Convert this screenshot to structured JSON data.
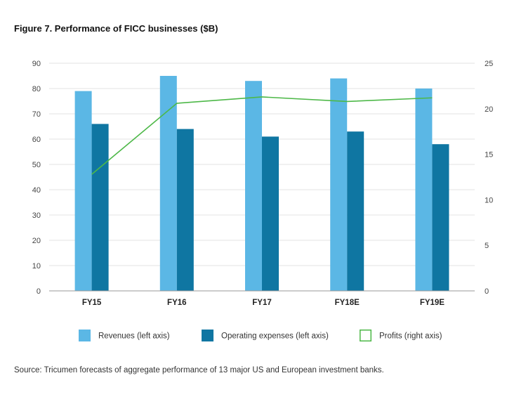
{
  "title": "Figure 7. Performance of FICC businesses ($B)",
  "source": "Source: Tricumen forecasts of aggregate performance of 13 major US and European investment banks.",
  "chart_data": {
    "type": "bar",
    "title": "Figure 7. Performance of FICC businesses ($B)",
    "categories": [
      "FY15",
      "FY16",
      "FY17",
      "FY18E",
      "FY19E"
    ],
    "y_left": {
      "ylim": [
        0,
        90
      ],
      "ticks": [
        0,
        10,
        20,
        30,
        40,
        50,
        60,
        70,
        80,
        90
      ]
    },
    "y_right": {
      "ylim": [
        0,
        25
      ],
      "ticks": [
        0,
        5,
        10,
        15,
        20,
        25
      ]
    },
    "series": [
      {
        "name": "Revenues (left axis)",
        "type": "bar",
        "axis": "left",
        "color": "#5bb7e5",
        "values": [
          79,
          85,
          83,
          84,
          80
        ]
      },
      {
        "name": "Operating expenses (left axis)",
        "type": "bar",
        "axis": "left",
        "color": "#0f76a2",
        "values": [
          66,
          64,
          61,
          63,
          58
        ]
      },
      {
        "name": "Profits (right axis)",
        "type": "line",
        "axis": "right",
        "color": "#4db848",
        "values": [
          12.8,
          20.6,
          21.3,
          20.8,
          21.2
        ]
      }
    ],
    "grid": true,
    "legend": "bottom"
  }
}
